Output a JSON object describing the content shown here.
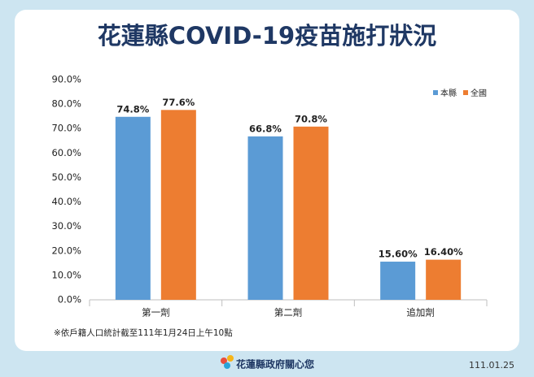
{
  "chart_data": {
    "type": "bar",
    "title": "花蓮縣COVID-19疫苗施打狀況",
    "categories": [
      "第一劑",
      "第二劑",
      "追加劑"
    ],
    "series": [
      {
        "name": "本縣",
        "color": "#5b9bd5",
        "values": [
          74.8,
          66.8,
          15.6
        ],
        "value_labels": [
          "74.8%",
          "66.8%",
          "15.60%"
        ]
      },
      {
        "name": "全國",
        "color": "#ed7d31",
        "values": [
          77.6,
          70.8,
          16.4
        ],
        "value_labels": [
          "77.6%",
          "70.8%",
          "16.40%"
        ]
      }
    ],
    "ylim": [
      0,
      90
    ],
    "yticks": [
      {
        "value": 0,
        "label": "0.0%"
      },
      {
        "value": 10,
        "label": "10.0%"
      },
      {
        "value": 20,
        "label": "20.0%"
      },
      {
        "value": 30,
        "label": "30.0%"
      },
      {
        "value": 40,
        "label": "40.0%"
      },
      {
        "value": 50,
        "label": "50.0%"
      },
      {
        "value": 60,
        "label": "60.0%"
      },
      {
        "value": 70,
        "label": "70.0%"
      },
      {
        "value": 80,
        "label": "80.0%"
      },
      {
        "value": 90,
        "label": "90.0%"
      }
    ],
    "grid": false,
    "legend": "top-right",
    "note": "※依戶籍人口統計截至111年1月24日上午10點"
  },
  "footer": {
    "org": "花蓮縣政府關心您",
    "date": "111.01.25"
  }
}
